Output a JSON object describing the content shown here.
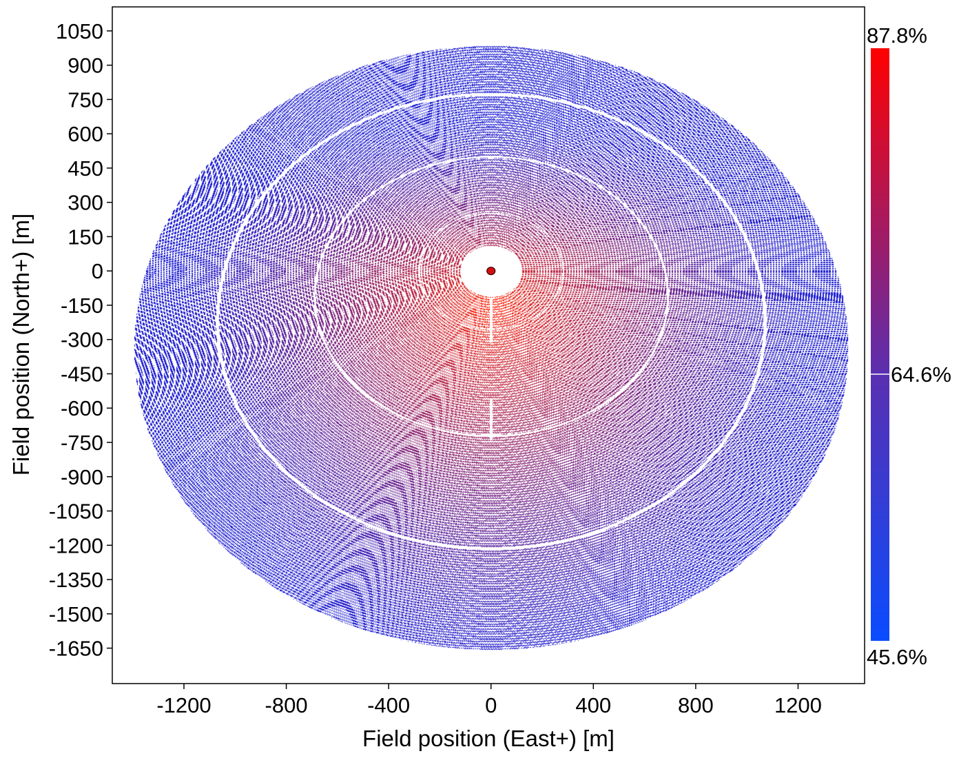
{
  "chart_data": {
    "type": "heatmap",
    "title": "",
    "xlabel": "Field position (East+) [m]",
    "ylabel": "Field position (North+) [m]",
    "xlim": [
      -1480,
      1460
    ],
    "ylim": [
      -1805,
      1155
    ],
    "x_ticks": [
      "-1200",
      "-800",
      "-400",
      "0",
      "400",
      "800",
      "1200"
    ],
    "y_ticks": [
      "1050",
      "900",
      "750",
      "600",
      "450",
      "300",
      "150",
      "0",
      "-150",
      "-300",
      "-450",
      "-600",
      "-750",
      "-900",
      "-1050",
      "-1200",
      "-1350",
      "-1500",
      "-1650"
    ],
    "grid": false,
    "field": {
      "center": [
        0,
        -335
      ],
      "radius_east_west": 1395,
      "radius_north_south": 1320,
      "tower_position": [
        0,
        0
      ],
      "exclusion_radius_east_west": 120,
      "exclusion_radius_north_south": 112,
      "peak_efficiency_position": [
        0,
        -130
      ],
      "ring_gaps_east_west": [
        280,
        690,
        1070
      ],
      "ring_gaps_north_south": [
        255,
        610,
        995
      ],
      "min_efficiency_at_edge_north": 45.6,
      "max_efficiency": 87.8
    },
    "colorbar": {
      "min_label": "45.6%",
      "mid_label": "64.6%",
      "max_label": "87.8%",
      "min": 45.6,
      "mid": 64.6,
      "max": 87.8,
      "colors": [
        "#0a4cff",
        "#5a2fb0",
        "#ff0000"
      ]
    },
    "point_color_low": "#1b1bd0",
    "point_color_high": "#ff2a0a"
  }
}
